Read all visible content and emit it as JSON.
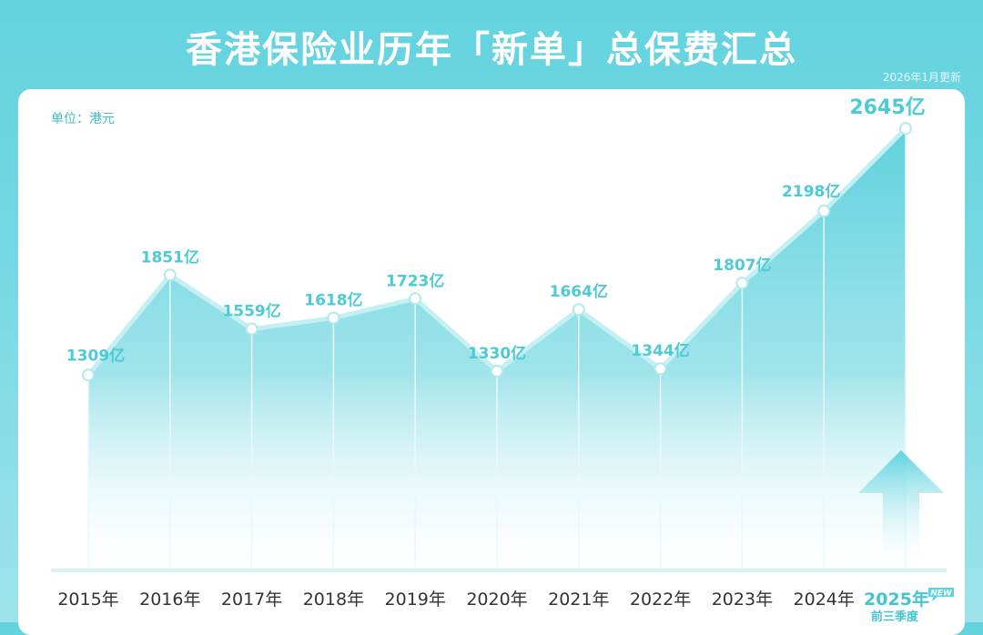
{
  "header": {
    "title": "香港保险业历年「新单」总保费汇总",
    "update_note": "2026年1月更新"
  },
  "colors": {
    "accent": "#5fd2de",
    "line": "#b9ecf1",
    "label": "#4ccad6",
    "axis_text": "#333333"
  },
  "chart_data": {
    "type": "area",
    "unit_label": "单位：港元",
    "categories": [
      "2015年",
      "2016年",
      "2017年",
      "2018年",
      "2019年",
      "2020年",
      "2021年",
      "2022年",
      "2023年",
      "2024年",
      "2025年"
    ],
    "values": [
      1309,
      1851,
      1559,
      1618,
      1723,
      1330,
      1664,
      1344,
      1807,
      2198,
      2645
    ],
    "value_labels": [
      "1309亿",
      "1851亿",
      "1559亿",
      "1618亿",
      "1723亿",
      "1330亿",
      "1664亿",
      "1344亿",
      "1807亿",
      "2198亿",
      "2645亿"
    ],
    "last_category_note": "前三季度",
    "last_category_badge": "NEW",
    "ylim": [
      0,
      2800
    ],
    "grid": false,
    "legend": "none"
  }
}
